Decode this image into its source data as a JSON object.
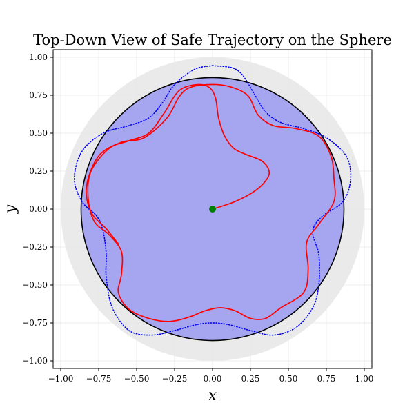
{
  "chart_data": {
    "type": "line",
    "title": "Top-Down View of Safe Trajectory on the Sphere",
    "xlabel": "x",
    "ylabel": "y",
    "xlim": [
      -1.05,
      1.05
    ],
    "ylim": [
      -1.05,
      1.05
    ],
    "grid": true,
    "aspect": "equal",
    "x_ticks": [
      "−1.00",
      "−0.75",
      "−0.50",
      "−0.25",
      "0.00",
      "0.25",
      "0.50",
      "0.75",
      "1.00"
    ],
    "x_tick_values": [
      -1.0,
      -0.75,
      -0.5,
      -0.25,
      0.0,
      0.25,
      0.5,
      0.75,
      1.0
    ],
    "y_ticks": [
      "−1.00",
      "−0.75",
      "−0.50",
      "−0.25",
      "0.00",
      "0.25",
      "0.50",
      "0.75",
      "1.00"
    ],
    "y_tick_values": [
      -1.0,
      -0.75,
      -0.5,
      -0.25,
      0.0,
      0.25,
      0.5,
      0.75,
      1.0
    ],
    "sphere_disk": {
      "radius": 1.0,
      "color": "#e8e8e8"
    },
    "safe_region": {
      "radius": 0.866,
      "fill": "#a5a5f0",
      "stroke": "#000000"
    },
    "series": [
      {
        "style": "dotted",
        "color": "#0000ff",
        "points": [
          [
            0.0,
            0.945
          ],
          [
            0.13,
            0.93
          ],
          [
            0.2,
            0.88
          ],
          [
            0.28,
            0.75
          ],
          [
            0.35,
            0.64
          ],
          [
            0.45,
            0.57
          ],
          [
            0.6,
            0.53
          ],
          [
            0.75,
            0.47
          ],
          [
            0.88,
            0.35
          ],
          [
            0.91,
            0.2
          ],
          [
            0.86,
            0.05
          ],
          [
            0.72,
            -0.05
          ],
          [
            0.66,
            -0.15
          ],
          [
            0.7,
            -0.3
          ],
          [
            0.7,
            -0.5
          ],
          [
            0.66,
            -0.65
          ],
          [
            0.55,
            -0.78
          ],
          [
            0.4,
            -0.83
          ],
          [
            0.25,
            -0.8
          ],
          [
            0.1,
            -0.76
          ],
          [
            0.0,
            -0.75
          ],
          [
            -0.1,
            -0.76
          ],
          [
            -0.25,
            -0.8
          ],
          [
            -0.4,
            -0.83
          ],
          [
            -0.55,
            -0.8
          ],
          [
            -0.66,
            -0.65
          ],
          [
            -0.7,
            -0.45
          ],
          [
            -0.7,
            -0.3
          ],
          [
            -0.72,
            -0.15
          ],
          [
            -0.76,
            -0.05
          ],
          [
            -0.86,
            0.05
          ],
          [
            -0.91,
            0.2
          ],
          [
            -0.86,
            0.38
          ],
          [
            -0.72,
            0.5
          ],
          [
            -0.55,
            0.55
          ],
          [
            -0.42,
            0.6
          ],
          [
            -0.33,
            0.7
          ],
          [
            -0.25,
            0.82
          ],
          [
            -0.12,
            0.92
          ],
          [
            0.0,
            0.945
          ]
        ]
      },
      {
        "style": "solid",
        "color": "#ff0000",
        "points": [
          [
            0.0,
            0.0
          ],
          [
            0.15,
            0.05
          ],
          [
            0.28,
            0.12
          ],
          [
            0.36,
            0.2
          ],
          [
            0.37,
            0.26
          ],
          [
            0.32,
            0.32
          ],
          [
            0.22,
            0.36
          ],
          [
            0.14,
            0.4
          ],
          [
            0.08,
            0.48
          ],
          [
            0.04,
            0.6
          ],
          [
            0.02,
            0.73
          ],
          [
            -0.02,
            0.8
          ],
          [
            -0.1,
            0.82
          ],
          [
            -0.22,
            0.78
          ],
          [
            -0.32,
            0.63
          ],
          [
            -0.42,
            0.5
          ],
          [
            -0.55,
            0.45
          ],
          [
            -0.68,
            0.4
          ],
          [
            -0.8,
            0.25
          ],
          [
            -0.82,
            0.08
          ],
          [
            -0.78,
            -0.08
          ],
          [
            -0.68,
            -0.17
          ],
          [
            -0.6,
            -0.28
          ],
          [
            -0.6,
            -0.43
          ],
          [
            -0.62,
            -0.55
          ],
          [
            -0.55,
            -0.66
          ],
          [
            -0.42,
            -0.72
          ],
          [
            -0.28,
            -0.74
          ],
          [
            -0.15,
            -0.71
          ],
          [
            -0.05,
            -0.67
          ],
          [
            0.05,
            -0.65
          ],
          [
            0.15,
            -0.67
          ],
          [
            0.25,
            -0.72
          ],
          [
            0.35,
            -0.72
          ],
          [
            0.45,
            -0.65
          ],
          [
            0.6,
            -0.55
          ],
          [
            0.63,
            -0.4
          ],
          [
            0.62,
            -0.22
          ],
          [
            0.7,
            -0.1
          ],
          [
            0.8,
            0.05
          ],
          [
            0.8,
            0.2
          ],
          [
            0.78,
            0.35
          ],
          [
            0.7,
            0.48
          ],
          [
            0.55,
            0.53
          ],
          [
            0.4,
            0.55
          ],
          [
            0.3,
            0.62
          ],
          [
            0.23,
            0.75
          ],
          [
            0.1,
            0.81
          ],
          [
            -0.03,
            0.82
          ],
          [
            -0.15,
            0.8
          ],
          [
            -0.22,
            0.74
          ],
          [
            -0.3,
            0.6
          ],
          [
            -0.45,
            0.47
          ],
          [
            -0.6,
            0.44
          ],
          [
            -0.75,
            0.35
          ],
          [
            -0.83,
            0.15
          ],
          [
            -0.8,
            -0.02
          ],
          [
            -0.7,
            -0.13
          ],
          [
            -0.62,
            -0.23
          ]
        ]
      }
    ],
    "start_marker": {
      "x": 0.0,
      "y": 0.0,
      "color": "#008000"
    }
  }
}
